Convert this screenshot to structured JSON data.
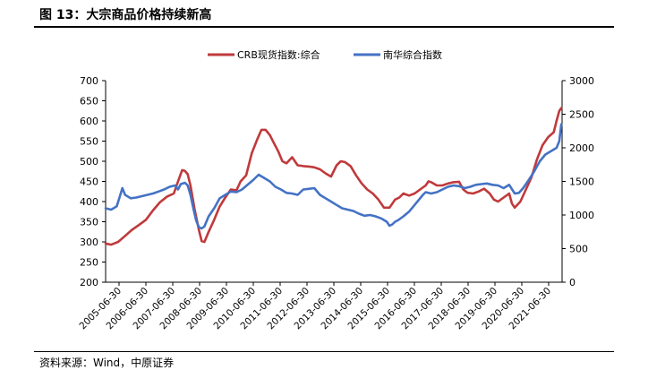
{
  "figure": {
    "title": "图 13：大宗商品价格持续新高",
    "source": "资料来源：Wind，中原证券"
  },
  "chart_data": {
    "type": "line",
    "x_ticks": [
      "2005-06-30",
      "2006-06-30",
      "2007-06-30",
      "2008-06-30",
      "2009-06-30",
      "2010-06-30",
      "2011-06-30",
      "2012-06-30",
      "2013-06-30",
      "2014-06-30",
      "2015-06-30",
      "2016-06-30",
      "2017-06-30",
      "2018-06-30",
      "2019-06-30",
      "2020-06-30",
      "2021-06-30"
    ],
    "x_range": [
      2005.5,
      2021.9
    ],
    "y_left": {
      "range": [
        200,
        700
      ],
      "ticks": [
        "200",
        "250",
        "300",
        "350",
        "400",
        "450",
        "500",
        "550",
        "600",
        "650",
        "700"
      ]
    },
    "y_right": {
      "range": [
        0,
        3000
      ],
      "ticks": [
        "0",
        "500",
        "1000",
        "1500",
        "2000",
        "2500",
        "3000"
      ]
    },
    "legend_position": "top",
    "grid": false,
    "series": [
      {
        "name": "CRB现货指数:综合",
        "axis": "left",
        "color": "#c0393b",
        "points": [
          [
            2005.5,
            296
          ],
          [
            2005.7,
            293
          ],
          [
            2005.95,
            300
          ],
          [
            2006.2,
            315
          ],
          [
            2006.45,
            330
          ],
          [
            2006.7,
            342
          ],
          [
            2006.95,
            355
          ],
          [
            2007.2,
            378
          ],
          [
            2007.45,
            398
          ],
          [
            2007.7,
            412
          ],
          [
            2007.95,
            420
          ],
          [
            2008.1,
            450
          ],
          [
            2008.25,
            478
          ],
          [
            2008.35,
            476
          ],
          [
            2008.45,
            468
          ],
          [
            2008.55,
            440
          ],
          [
            2008.7,
            380
          ],
          [
            2008.85,
            330
          ],
          [
            2008.95,
            302
          ],
          [
            2009.05,
            300
          ],
          [
            2009.2,
            325
          ],
          [
            2009.4,
            355
          ],
          [
            2009.6,
            388
          ],
          [
            2009.8,
            410
          ],
          [
            2010.0,
            430
          ],
          [
            2010.2,
            428
          ],
          [
            2010.35,
            450
          ],
          [
            2010.55,
            465
          ],
          [
            2010.75,
            520
          ],
          [
            2010.95,
            555
          ],
          [
            2011.1,
            578
          ],
          [
            2011.25,
            578
          ],
          [
            2011.4,
            565
          ],
          [
            2011.55,
            545
          ],
          [
            2011.7,
            525
          ],
          [
            2011.85,
            500
          ],
          [
            2012.0,
            495
          ],
          [
            2012.2,
            510
          ],
          [
            2012.4,
            490
          ],
          [
            2012.6,
            488
          ],
          [
            2012.8,
            487
          ],
          [
            2013.0,
            485
          ],
          [
            2013.2,
            480
          ],
          [
            2013.4,
            470
          ],
          [
            2013.6,
            462
          ],
          [
            2013.8,
            490
          ],
          [
            2013.95,
            500
          ],
          [
            2014.1,
            498
          ],
          [
            2014.3,
            488
          ],
          [
            2014.5,
            465
          ],
          [
            2014.7,
            445
          ],
          [
            2014.9,
            430
          ],
          [
            2015.1,
            420
          ],
          [
            2015.3,
            405
          ],
          [
            2015.5,
            385
          ],
          [
            2015.7,
            385
          ],
          [
            2015.9,
            405
          ],
          [
            2016.05,
            410
          ],
          [
            2016.2,
            420
          ],
          [
            2016.4,
            415
          ],
          [
            2016.6,
            420
          ],
          [
            2016.8,
            430
          ],
          [
            2017.0,
            440
          ],
          [
            2017.1,
            450
          ],
          [
            2017.2,
            448
          ],
          [
            2017.4,
            440
          ],
          [
            2017.6,
            440
          ],
          [
            2017.8,
            445
          ],
          [
            2018.0,
            448
          ],
          [
            2018.2,
            449
          ],
          [
            2018.35,
            430
          ],
          [
            2018.5,
            422
          ],
          [
            2018.7,
            420
          ],
          [
            2018.9,
            425
          ],
          [
            2019.1,
            432
          ],
          [
            2019.3,
            420
          ],
          [
            2019.45,
            405
          ],
          [
            2019.6,
            400
          ],
          [
            2019.8,
            410
          ],
          [
            2020.0,
            420
          ],
          [
            2020.1,
            395
          ],
          [
            2020.2,
            385
          ],
          [
            2020.4,
            400
          ],
          [
            2020.6,
            430
          ],
          [
            2020.8,
            460
          ],
          [
            2021.0,
            505
          ],
          [
            2021.2,
            540
          ],
          [
            2021.4,
            560
          ],
          [
            2021.6,
            572
          ],
          [
            2021.7,
            600
          ],
          [
            2021.8,
            625
          ],
          [
            2021.87,
            632
          ]
        ]
      },
      {
        "name": "南华综合指数",
        "axis": "right",
        "color": "#4472c4",
        "points": [
          [
            2005.5,
            1100
          ],
          [
            2005.7,
            1080
          ],
          [
            2005.9,
            1130
          ],
          [
            2006.0,
            1260
          ],
          [
            2006.1,
            1400
          ],
          [
            2006.2,
            1300
          ],
          [
            2006.4,
            1250
          ],
          [
            2006.6,
            1260
          ],
          [
            2006.8,
            1280
          ],
          [
            2007.0,
            1300
          ],
          [
            2007.2,
            1320
          ],
          [
            2007.4,
            1350
          ],
          [
            2007.6,
            1380
          ],
          [
            2007.8,
            1420
          ],
          [
            2008.0,
            1440
          ],
          [
            2008.1,
            1380
          ],
          [
            2008.2,
            1460
          ],
          [
            2008.35,
            1480
          ],
          [
            2008.45,
            1440
          ],
          [
            2008.55,
            1300
          ],
          [
            2008.65,
            1100
          ],
          [
            2008.75,
            920
          ],
          [
            2008.85,
            820
          ],
          [
            2008.95,
            800
          ],
          [
            2009.05,
            830
          ],
          [
            2009.2,
            980
          ],
          [
            2009.4,
            1100
          ],
          [
            2009.6,
            1250
          ],
          [
            2009.8,
            1300
          ],
          [
            2010.0,
            1350
          ],
          [
            2010.2,
            1340
          ],
          [
            2010.4,
            1380
          ],
          [
            2010.6,
            1450
          ],
          [
            2010.8,
            1520
          ],
          [
            2011.0,
            1600
          ],
          [
            2011.2,
            1550
          ],
          [
            2011.4,
            1500
          ],
          [
            2011.6,
            1420
          ],
          [
            2011.8,
            1380
          ],
          [
            2012.0,
            1330
          ],
          [
            2012.2,
            1320
          ],
          [
            2012.4,
            1300
          ],
          [
            2012.6,
            1380
          ],
          [
            2012.8,
            1390
          ],
          [
            2013.0,
            1400
          ],
          [
            2013.2,
            1300
          ],
          [
            2013.4,
            1250
          ],
          [
            2013.6,
            1200
          ],
          [
            2013.8,
            1150
          ],
          [
            2014.0,
            1100
          ],
          [
            2014.2,
            1080
          ],
          [
            2014.4,
            1060
          ],
          [
            2014.6,
            1020
          ],
          [
            2014.8,
            990
          ],
          [
            2015.0,
            1000
          ],
          [
            2015.2,
            980
          ],
          [
            2015.4,
            950
          ],
          [
            2015.6,
            900
          ],
          [
            2015.7,
            840
          ],
          [
            2015.8,
            860
          ],
          [
            2015.9,
            900
          ],
          [
            2016.0,
            920
          ],
          [
            2016.2,
            980
          ],
          [
            2016.4,
            1050
          ],
          [
            2016.6,
            1150
          ],
          [
            2016.8,
            1250
          ],
          [
            2016.9,
            1300
          ],
          [
            2017.0,
            1340
          ],
          [
            2017.2,
            1320
          ],
          [
            2017.4,
            1340
          ],
          [
            2017.6,
            1380
          ],
          [
            2017.8,
            1420
          ],
          [
            2018.0,
            1440
          ],
          [
            2018.2,
            1430
          ],
          [
            2018.4,
            1400
          ],
          [
            2018.6,
            1420
          ],
          [
            2018.8,
            1450
          ],
          [
            2019.0,
            1460
          ],
          [
            2019.2,
            1470
          ],
          [
            2019.4,
            1450
          ],
          [
            2019.6,
            1440
          ],
          [
            2019.8,
            1400
          ],
          [
            2020.0,
            1450
          ],
          [
            2020.2,
            1320
          ],
          [
            2020.35,
            1330
          ],
          [
            2020.5,
            1400
          ],
          [
            2020.7,
            1520
          ],
          [
            2020.9,
            1650
          ],
          [
            2021.1,
            1800
          ],
          [
            2021.3,
            1900
          ],
          [
            2021.5,
            1950
          ],
          [
            2021.7,
            2000
          ],
          [
            2021.8,
            2100
          ],
          [
            2021.87,
            2350
          ]
        ]
      }
    ]
  }
}
